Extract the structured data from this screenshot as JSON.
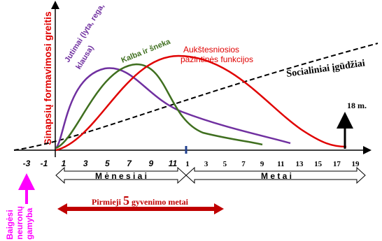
{
  "y_axis_label": "Sinapsių formavimosi greitis",
  "curves": [
    {
      "label": "Jutimai (lyta, rega,",
      "label2": "klausa)"
    },
    {
      "label": "Kalba ir šneka"
    },
    {
      "label": "Aukštesniosios",
      "label2": "pažintinės funkcijos"
    },
    {
      "label": "Socialiniai įgūdžiai"
    }
  ],
  "prenatal_ticks": [
    "-3",
    "-1"
  ],
  "month_ticks": [
    "1",
    "3",
    "5",
    "7",
    "9",
    "11"
  ],
  "year_ticks": [
    "1",
    "3",
    "5",
    "7",
    "9",
    "11",
    "13",
    "15",
    "17",
    "19"
  ],
  "periods": [
    "M ė n e s i a i",
    "M e t a i"
  ],
  "marker": "18 m.",
  "first_years": {
    "before": "Pirmieji",
    "number": "5",
    "after": "gyvenimo metai"
  },
  "neurons": [
    "Baigėsi",
    "neuronų",
    "gamyba"
  ]
}
